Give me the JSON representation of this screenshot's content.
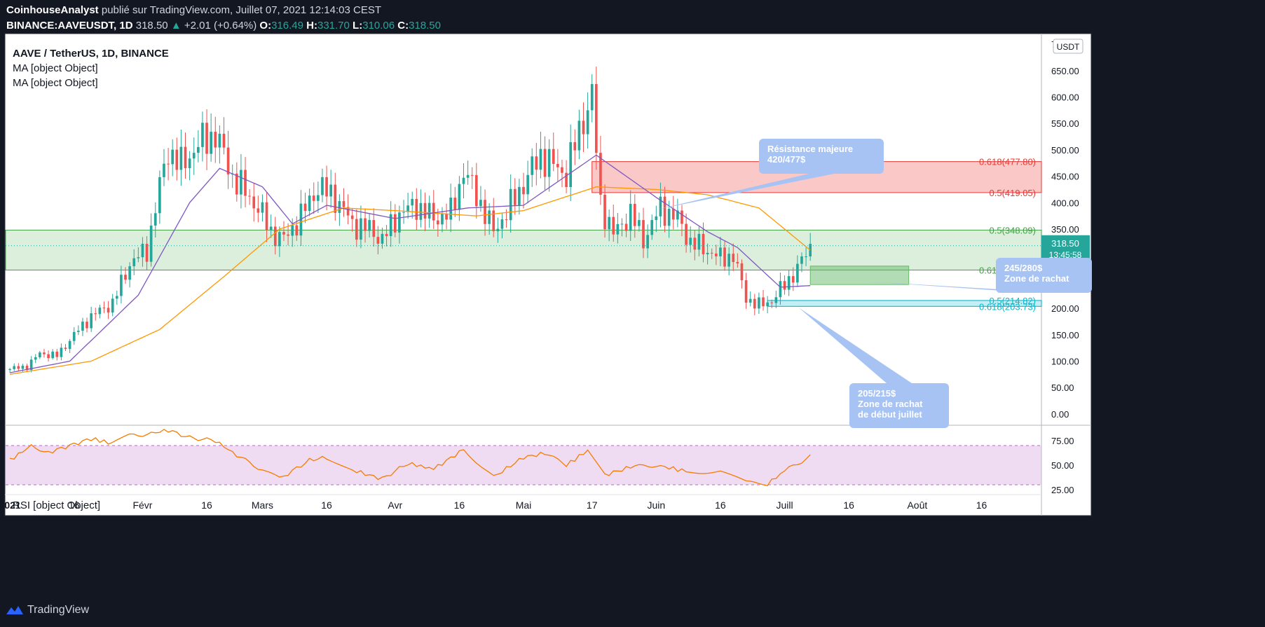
{
  "header": {
    "author": "CoinhouseAnalyst",
    "published_text": "publié sur TradingView.com, Juillet 07, 2021 12:14:03 CEST",
    "symbol": "BINANCE:AAVEUSDT, 1D",
    "last": "318.50",
    "change": "+2.01 (+0.64%)",
    "o_label": "O:",
    "o": "316.49",
    "h_label": "H:",
    "h": "331.70",
    "l_label": "L:",
    "l": "310.06",
    "c_label": "C:",
    "c": "318.50"
  },
  "legend": {
    "main": "AAVE / TetherUS, 1D, BINANCE",
    "ma1": "MA [object Object]",
    "ma2": "MA [object Object]",
    "rsi": "RSI [object Object]"
  },
  "price_label": {
    "value": "318.50",
    "countdown": "13:45:58"
  },
  "currency": "USDT",
  "footer": {
    "brand": "TradingView"
  },
  "colors": {
    "up": "#26a69a",
    "down": "#ef5350",
    "ma_fast": "#7e57c2",
    "ma_slow": "#ff9800",
    "rsi_line": "#f57c00",
    "rsi_band": "#e1bee7",
    "fib_green": "#43a047",
    "fib_red": "#e53935",
    "fib_cyan": "#00bcd4",
    "callout": "#a7c3f4",
    "background": "#131722"
  },
  "chart_data": {
    "type": "candlestick",
    "y_ticks": [
      "700.00",
      "650.00",
      "600.00",
      "550.00",
      "500.00",
      "450.00",
      "400.00",
      "350.00",
      "300.00",
      "250.00",
      "200.00",
      "150.00",
      "100.00",
      "50.00",
      "0.00"
    ],
    "ylim": [
      -20,
      720
    ],
    "x_ticks": [
      {
        "date": "2021-01-01",
        "label": "2021"
      },
      {
        "date": "2021-01-16",
        "label": "16"
      },
      {
        "date": "2021-02-01",
        "label": "Févr"
      },
      {
        "date": "2021-02-16",
        "label": "16"
      },
      {
        "date": "2021-03-01",
        "label": "Mars"
      },
      {
        "date": "2021-03-16",
        "label": "16"
      },
      {
        "date": "2021-04-01",
        "label": "Avr"
      },
      {
        "date": "2021-04-16",
        "label": "16"
      },
      {
        "date": "2021-05-01",
        "label": "Mai"
      },
      {
        "date": "2021-05-17",
        "label": "17"
      },
      {
        "date": "2021-06-01",
        "label": "Juin"
      },
      {
        "date": "2021-06-16",
        "label": "16"
      },
      {
        "date": "2021-07-01",
        "label": "Juill"
      },
      {
        "date": "2021-07-16",
        "label": "16"
      },
      {
        "date": "2021-08-01",
        "label": "Août"
      },
      {
        "date": "2021-08-16",
        "label": "16"
      }
    ],
    "x_range": [
      "2020-12-31",
      "2021-08-30"
    ],
    "close_anchors": [
      {
        "date": "2021-01-01",
        "value": 85
      },
      {
        "date": "2021-01-05",
        "value": 90
      },
      {
        "date": "2021-01-08",
        "value": 115
      },
      {
        "date": "2021-01-12",
        "value": 110
      },
      {
        "date": "2021-01-16",
        "value": 150
      },
      {
        "date": "2021-01-20",
        "value": 185
      },
      {
        "date": "2021-01-25",
        "value": 210
      },
      {
        "date": "2021-01-29",
        "value": 285
      },
      {
        "date": "2021-02-02",
        "value": 310
      },
      {
        "date": "2021-02-05",
        "value": 430
      },
      {
        "date": "2021-02-07",
        "value": 500
      },
      {
        "date": "2021-02-10",
        "value": 470
      },
      {
        "date": "2021-02-14",
        "value": 510
      },
      {
        "date": "2021-02-18",
        "value": 530
      },
      {
        "date": "2021-02-22",
        "value": 450
      },
      {
        "date": "2021-02-25",
        "value": 420
      },
      {
        "date": "2021-02-28",
        "value": 390
      },
      {
        "date": "2021-03-03",
        "value": 345
      },
      {
        "date": "2021-03-06",
        "value": 330
      },
      {
        "date": "2021-03-10",
        "value": 375
      },
      {
        "date": "2021-03-14",
        "value": 430
      },
      {
        "date": "2021-03-18",
        "value": 410
      },
      {
        "date": "2021-03-22",
        "value": 360
      },
      {
        "date": "2021-03-26",
        "value": 350
      },
      {
        "date": "2021-03-29",
        "value": 330
      },
      {
        "date": "2021-04-02",
        "value": 380
      },
      {
        "date": "2021-04-06",
        "value": 395
      },
      {
        "date": "2021-04-10",
        "value": 370
      },
      {
        "date": "2021-04-14",
        "value": 380
      },
      {
        "date": "2021-04-17",
        "value": 460
      },
      {
        "date": "2021-04-20",
        "value": 415
      },
      {
        "date": "2021-04-24",
        "value": 345
      },
      {
        "date": "2021-04-28",
        "value": 395
      },
      {
        "date": "2021-05-02",
        "value": 450
      },
      {
        "date": "2021-05-05",
        "value": 490
      },
      {
        "date": "2021-05-08",
        "value": 470
      },
      {
        "date": "2021-05-11",
        "value": 455
      },
      {
        "date": "2021-05-13",
        "value": 510
      },
      {
        "date": "2021-05-15",
        "value": 560
      },
      {
        "date": "2021-05-17",
        "value": 600
      },
      {
        "date": "2021-05-19",
        "value": 400
      },
      {
        "date": "2021-05-22",
        "value": 340
      },
      {
        "date": "2021-05-26",
        "value": 380
      },
      {
        "date": "2021-05-29",
        "value": 330
      },
      {
        "date": "2021-06-02",
        "value": 390
      },
      {
        "date": "2021-06-06",
        "value": 370
      },
      {
        "date": "2021-06-09",
        "value": 325
      },
      {
        "date": "2021-06-13",
        "value": 310
      },
      {
        "date": "2021-06-16",
        "value": 295
      },
      {
        "date": "2021-06-19",
        "value": 300
      },
      {
        "date": "2021-06-22",
        "value": 220
      },
      {
        "date": "2021-06-25",
        "value": 205
      },
      {
        "date": "2021-06-28",
        "value": 215
      },
      {
        "date": "2021-07-01",
        "value": 245
      },
      {
        "date": "2021-07-04",
        "value": 275
      },
      {
        "date": "2021-07-07",
        "value": 318.5
      }
    ],
    "ma_fast_anchors": [
      {
        "date": "2021-01-01",
        "value": 78
      },
      {
        "date": "2021-01-15",
        "value": 100
      },
      {
        "date": "2021-01-31",
        "value": 225
      },
      {
        "date": "2021-02-12",
        "value": 400
      },
      {
        "date": "2021-02-19",
        "value": 465
      },
      {
        "date": "2021-03-01",
        "value": 430
      },
      {
        "date": "2021-03-08",
        "value": 360
      },
      {
        "date": "2021-03-16",
        "value": 395
      },
      {
        "date": "2021-04-01",
        "value": 370
      },
      {
        "date": "2021-04-18",
        "value": 390
      },
      {
        "date": "2021-05-01",
        "value": 395
      },
      {
        "date": "2021-05-18",
        "value": 490
      },
      {
        "date": "2021-06-01",
        "value": 410
      },
      {
        "date": "2021-06-13",
        "value": 345
      },
      {
        "date": "2021-06-20",
        "value": 315
      },
      {
        "date": "2021-06-30",
        "value": 240
      },
      {
        "date": "2021-07-07",
        "value": 243
      }
    ],
    "ma_slow_anchors": [
      {
        "date": "2021-01-01",
        "value": 75
      },
      {
        "date": "2021-01-20",
        "value": 100
      },
      {
        "date": "2021-02-05",
        "value": 160
      },
      {
        "date": "2021-02-20",
        "value": 260
      },
      {
        "date": "2021-03-05",
        "value": 350
      },
      {
        "date": "2021-03-20",
        "value": 390
      },
      {
        "date": "2021-04-01",
        "value": 385
      },
      {
        "date": "2021-04-20",
        "value": 375
      },
      {
        "date": "2021-05-01",
        "value": 385
      },
      {
        "date": "2021-05-18",
        "value": 430
      },
      {
        "date": "2021-06-01",
        "value": 425
      },
      {
        "date": "2021-06-13",
        "value": 415
      },
      {
        "date": "2021-06-25",
        "value": 390
      },
      {
        "date": "2021-07-07",
        "value": 310
      }
    ],
    "fib_levels": [
      {
        "label": "0.618(477.80)",
        "value": 477.8,
        "color": "red"
      },
      {
        "label": "0.5(419.05)",
        "value": 419.05,
        "color": "red"
      },
      {
        "label": "0.5(348.09)",
        "value": 348.09,
        "color": "green"
      },
      {
        "label": "0.618(272.49)",
        "value": 272.49,
        "color": "green"
      },
      {
        "label": "0.5(214.82)",
        "value": 214.82,
        "color": "cyan"
      },
      {
        "label": "0.618(203.73)",
        "value": 203.73,
        "color": "cyan"
      }
    ],
    "zones": [
      {
        "name": "resistance",
        "top": 477.8,
        "bottom": 419.05,
        "start": "2021-05-17"
      },
      {
        "name": "support",
        "top": 348.09,
        "bottom": 272.49,
        "start": "2020-12-31"
      },
      {
        "name": "buy-zone",
        "top": 280,
        "bottom": 245,
        "start": "2021-07-07",
        "end": "2021-07-30"
      },
      {
        "name": "early-july",
        "top": 214.82,
        "bottom": 203.73,
        "start": "2021-06-27"
      }
    ],
    "annotations": [
      {
        "lines": [
          "Résistance majeure",
          "420/477$"
        ],
        "date": "2021-06-01",
        "value": 420
      },
      {
        "lines": [
          "245/280$",
          "Zone de rachat"
        ],
        "date": "2021-07-13",
        "value": 262
      },
      {
        "lines": [
          "205/215$",
          "Zone de rachat",
          "de début juillet"
        ],
        "date": "2021-07-01",
        "value": 212
      }
    ],
    "rsi": {
      "ticks": [
        "75.00",
        "50.00",
        "25.00"
      ],
      "ylim": [
        20,
        90
      ],
      "bands": [
        70,
        30
      ],
      "anchors": [
        {
          "date": "2021-01-01",
          "value": 55
        },
        {
          "date": "2021-01-06",
          "value": 70
        },
        {
          "date": "2021-01-10",
          "value": 63
        },
        {
          "date": "2021-01-15",
          "value": 70
        },
        {
          "date": "2021-01-20",
          "value": 77
        },
        {
          "date": "2021-01-25",
          "value": 72
        },
        {
          "date": "2021-01-29",
          "value": 80
        },
        {
          "date": "2021-02-03",
          "value": 82
        },
        {
          "date": "2021-02-06",
          "value": 87
        },
        {
          "date": "2021-02-12",
          "value": 78
        },
        {
          "date": "2021-02-18",
          "value": 75
        },
        {
          "date": "2021-02-23",
          "value": 60
        },
        {
          "date": "2021-03-01",
          "value": 45
        },
        {
          "date": "2021-03-05",
          "value": 36
        },
        {
          "date": "2021-03-12",
          "value": 55
        },
        {
          "date": "2021-03-16",
          "value": 58
        },
        {
          "date": "2021-03-22",
          "value": 45
        },
        {
          "date": "2021-03-29",
          "value": 36
        },
        {
          "date": "2021-04-04",
          "value": 52
        },
        {
          "date": "2021-04-10",
          "value": 46
        },
        {
          "date": "2021-04-17",
          "value": 66
        },
        {
          "date": "2021-04-24",
          "value": 38
        },
        {
          "date": "2021-05-01",
          "value": 58
        },
        {
          "date": "2021-05-06",
          "value": 62
        },
        {
          "date": "2021-05-11",
          "value": 50
        },
        {
          "date": "2021-05-16",
          "value": 65
        },
        {
          "date": "2021-05-20",
          "value": 40
        },
        {
          "date": "2021-05-26",
          "value": 48
        },
        {
          "date": "2021-06-01",
          "value": 50
        },
        {
          "date": "2021-06-09",
          "value": 43
        },
        {
          "date": "2021-06-16",
          "value": 44
        },
        {
          "date": "2021-06-22",
          "value": 32
        },
        {
          "date": "2021-06-27",
          "value": 31
        },
        {
          "date": "2021-07-01",
          "value": 44
        },
        {
          "date": "2021-07-07",
          "value": 59
        }
      ]
    }
  }
}
